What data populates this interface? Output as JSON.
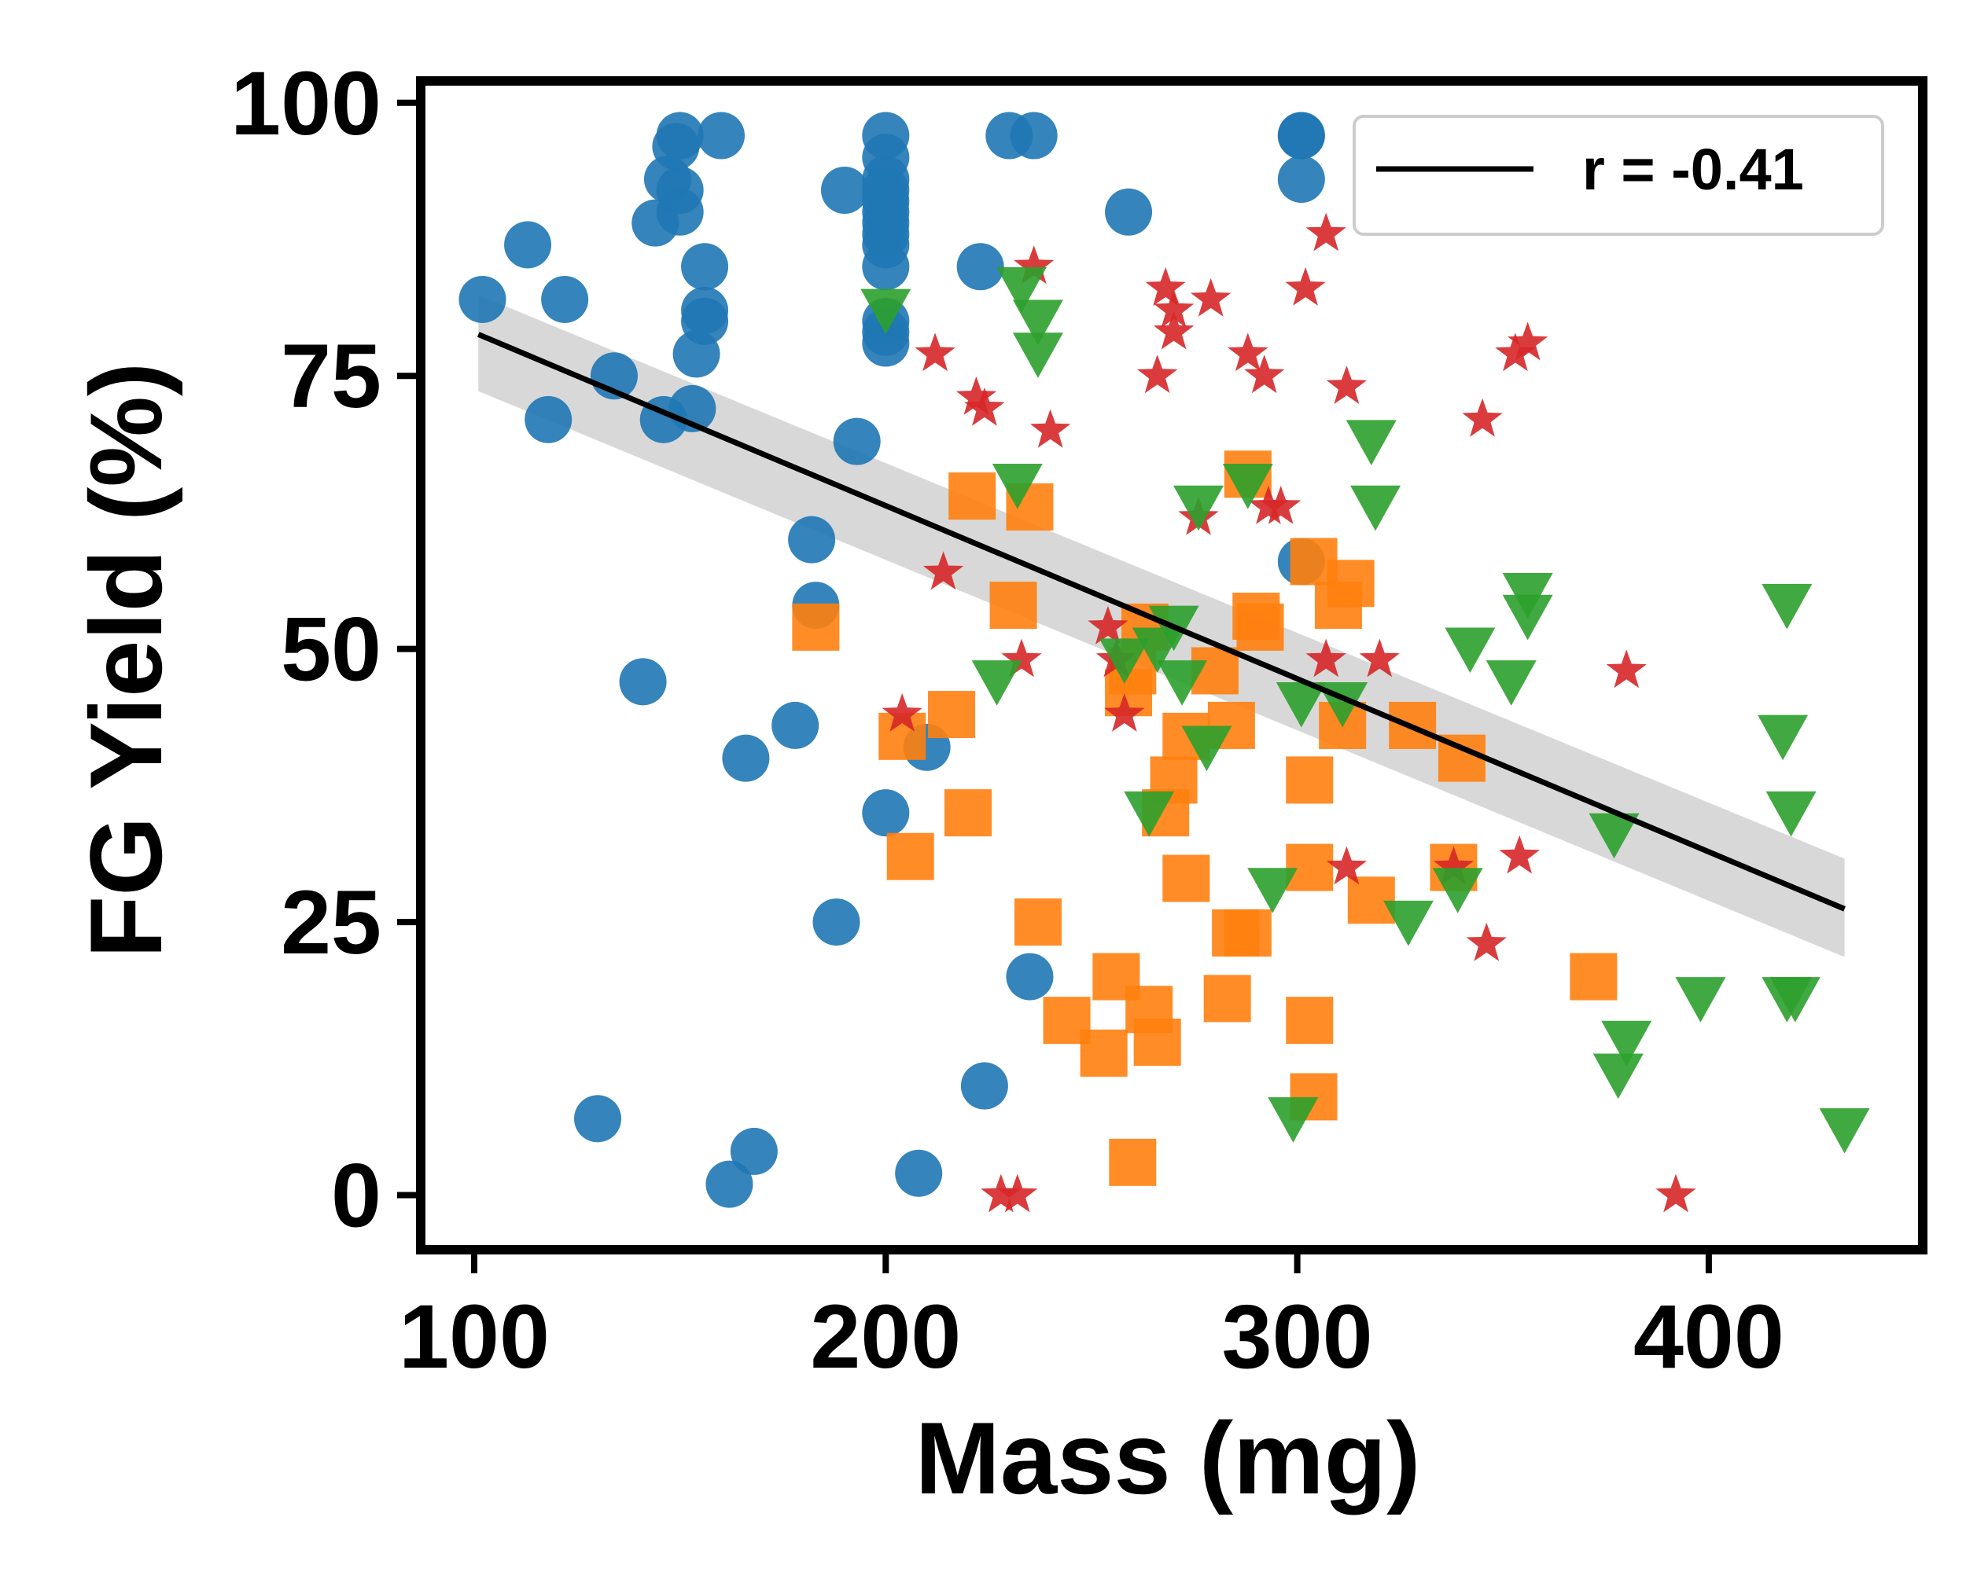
{
  "chart_data": {
    "type": "scatter",
    "xlabel": "Mass (mg)",
    "ylabel": "FG Yield (%)",
    "xlim": [
      87,
      452
    ],
    "ylim": [
      -5,
      102
    ],
    "xticks": [
      100,
      200,
      300,
      400
    ],
    "yticks": [
      0,
      25,
      50,
      75,
      100
    ],
    "xtick_labels": [
      "100",
      "200",
      "300",
      "400"
    ],
    "ytick_labels": [
      "0",
      "25",
      "50",
      "75",
      "100"
    ],
    "grid": false,
    "legend": {
      "position": "top-right",
      "entries": [
        {
          "label": "r = -0.41",
          "type": "line"
        }
      ]
    },
    "regression": {
      "x": [
        101,
        433
      ],
      "y": [
        78.8,
        26.2
      ],
      "ci_low": [
        73.6,
        21.8
      ],
      "ci_high": [
        82.4,
        30.8
      ],
      "color": "#000000"
    },
    "series": [
      {
        "marker": "circle",
        "color": "#1f77b4",
        "points": [
          [
            102,
            82
          ],
          [
            113,
            87
          ],
          [
            118,
            71
          ],
          [
            122,
            82
          ],
          [
            130,
            7
          ],
          [
            134,
            75
          ],
          [
            141,
            47
          ],
          [
            144,
            89
          ],
          [
            146,
            71
          ],
          [
            147,
            93
          ],
          [
            149,
            96
          ],
          [
            150,
            90
          ],
          [
            150,
            92
          ],
          [
            150,
            97
          ],
          [
            153,
            72
          ],
          [
            154,
            77
          ],
          [
            156,
            80
          ],
          [
            156,
            85
          ],
          [
            156,
            81
          ],
          [
            160,
            97
          ],
          [
            162,
            1
          ],
          [
            166,
            40
          ],
          [
            168,
            4
          ],
          [
            178,
            43
          ],
          [
            182,
            60
          ],
          [
            183,
            54
          ],
          [
            188,
            25
          ],
          [
            190,
            92
          ],
          [
            193,
            69
          ],
          [
            200,
            97
          ],
          [
            200,
            95
          ],
          [
            200,
            93
          ],
          [
            200,
            92
          ],
          [
            200,
            91
          ],
          [
            200,
            90
          ],
          [
            200,
            89
          ],
          [
            200,
            88
          ],
          [
            200,
            87
          ],
          [
            200,
            85
          ],
          [
            200,
            80
          ],
          [
            200,
            79
          ],
          [
            200,
            78
          ],
          [
            200,
            35
          ],
          [
            208,
            2
          ],
          [
            210,
            41
          ],
          [
            223,
            85
          ],
          [
            224,
            10
          ],
          [
            230,
            97
          ],
          [
            235,
            20
          ],
          [
            236,
            97
          ],
          [
            259,
            90
          ],
          [
            301,
            97
          ],
          [
            301,
            97
          ],
          [
            301,
            93
          ],
          [
            301,
            58
          ]
        ]
      },
      {
        "marker": "square",
        "color": "#ff7f0e",
        "points": [
          [
            183,
            52
          ],
          [
            204,
            42
          ],
          [
            206,
            31
          ],
          [
            216,
            44
          ],
          [
            220,
            35
          ],
          [
            221,
            64
          ],
          [
            231,
            54
          ],
          [
            235,
            63
          ],
          [
            237,
            25
          ],
          [
            244,
            16
          ],
          [
            253,
            13
          ],
          [
            256,
            20
          ],
          [
            259,
            46
          ],
          [
            260,
            48
          ],
          [
            260,
            3
          ],
          [
            263,
            52
          ],
          [
            264,
            17
          ],
          [
            266,
            14
          ],
          [
            268,
            35
          ],
          [
            270,
            38
          ],
          [
            273,
            29
          ],
          [
            273,
            42
          ],
          [
            280,
            48
          ],
          [
            283,
            18
          ],
          [
            284,
            43
          ],
          [
            285,
            24
          ],
          [
            288,
            24
          ],
          [
            288,
            66
          ],
          [
            290,
            53
          ],
          [
            291,
            52
          ],
          [
            303,
            30
          ],
          [
            303,
            38
          ],
          [
            303,
            16
          ],
          [
            304,
            58
          ],
          [
            304,
            9
          ],
          [
            310,
            54
          ],
          [
            311,
            43
          ],
          [
            313,
            56
          ],
          [
            318,
            27
          ],
          [
            328,
            43
          ],
          [
            338,
            30
          ],
          [
            340,
            40
          ],
          [
            372,
            20
          ]
        ]
      },
      {
        "marker": "star",
        "color": "#d62728",
        "points": [
          [
            204,
            44
          ],
          [
            212,
            77
          ],
          [
            214,
            57
          ],
          [
            222,
            73
          ],
          [
            224,
            72
          ],
          [
            228,
            0
          ],
          [
            232,
            0
          ],
          [
            233,
            49
          ],
          [
            236,
            85
          ],
          [
            240,
            70
          ],
          [
            254,
            52
          ],
          [
            256,
            49
          ],
          [
            258,
            44
          ],
          [
            266,
            75
          ],
          [
            268,
            83
          ],
          [
            270,
            81
          ],
          [
            270,
            79
          ],
          [
            276,
            62
          ],
          [
            279,
            82
          ],
          [
            288,
            77
          ],
          [
            292,
            75
          ],
          [
            293,
            63
          ],
          [
            296,
            63
          ],
          [
            302,
            83
          ],
          [
            307,
            88
          ],
          [
            307,
            49
          ],
          [
            312,
            74
          ],
          [
            312,
            30
          ],
          [
            320,
            49
          ],
          [
            338,
            30
          ],
          [
            345,
            71
          ],
          [
            346,
            23
          ],
          [
            353,
            77
          ],
          [
            354,
            31
          ],
          [
            356,
            78
          ],
          [
            380,
            48
          ],
          [
            392,
            0
          ]
        ]
      },
      {
        "marker": "triangle-down",
        "color": "#2ca02c",
        "points": [
          [
            200,
            81
          ],
          [
            227,
            47
          ],
          [
            232,
            65
          ],
          [
            233,
            83
          ],
          [
            237,
            80
          ],
          [
            237,
            77
          ],
          [
            258,
            49
          ],
          [
            264,
            35
          ],
          [
            266,
            50
          ],
          [
            270,
            52
          ],
          [
            272,
            47
          ],
          [
            276,
            63
          ],
          [
            278,
            41
          ],
          [
            288,
            65
          ],
          [
            294,
            28
          ],
          [
            299,
            7
          ],
          [
            301,
            45
          ],
          [
            311,
            45
          ],
          [
            318,
            69
          ],
          [
            319,
            63
          ],
          [
            327,
            25
          ],
          [
            339,
            28
          ],
          [
            342,
            50
          ],
          [
            352,
            47
          ],
          [
            356,
            53
          ],
          [
            356,
            55
          ],
          [
            377,
            33
          ],
          [
            378,
            11
          ],
          [
            380,
            14
          ],
          [
            398,
            18
          ],
          [
            418,
            42
          ],
          [
            419,
            18
          ],
          [
            419,
            54
          ],
          [
            420,
            35
          ],
          [
            421,
            18
          ],
          [
            433,
            6
          ]
        ]
      }
    ]
  }
}
